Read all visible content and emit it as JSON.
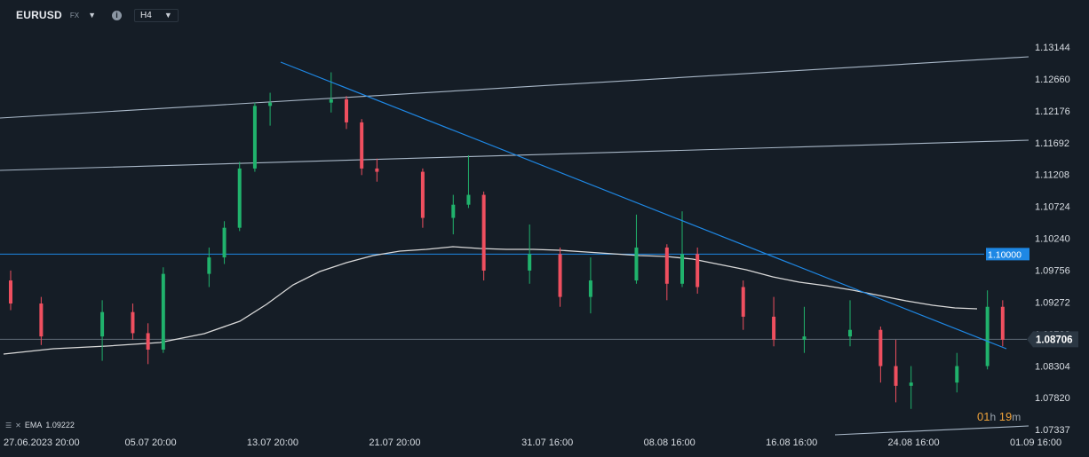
{
  "header": {
    "symbol": "EURUSD",
    "market": "FX",
    "timeframe": "H4",
    "info_icon": "info-icon",
    "dropdown_icon": "caret-down-icon"
  },
  "legend": {
    "indicator": "EMA",
    "value": "1.09222"
  },
  "timer": {
    "hours": "01",
    "hours_unit": "h",
    "minutes": "19",
    "minutes_unit": "m"
  },
  "colors": {
    "background": "#151d26",
    "bullish": "#20b26c",
    "bearish": "#ef4f5f",
    "ema": "#d9d9d9",
    "trendline": "#1e88e5",
    "channel": "#a9b8c8",
    "price_label": "#1e88e5",
    "timer": "#f0a33a"
  },
  "chart_data": {
    "type": "candlestick",
    "price_axis_ticks": [
      "1.13144",
      "1.12660",
      "1.12176",
      "1.11692",
      "1.11208",
      "1.10724",
      "1.10240",
      "1.09756",
      "1.09272",
      "1.08788",
      "1.08304",
      "1.07820",
      "1.07337"
    ],
    "time_axis_ticks": [
      "27.06.2023  20:00",
      "05.07  20:00",
      "13.07  20:00",
      "21.07  20:00",
      "31.07  16:00",
      "08.08  16:00",
      "16.08  16:00",
      "24.08  16:00",
      "01.09  16:00"
    ],
    "ylim": [
      1.0727,
      1.134
    ],
    "horizontal_line": {
      "price": 1.1,
      "label": "1.10000"
    },
    "last_price": {
      "price": 1.08706,
      "label": "1.08706"
    },
    "ema_value": 1.09222,
    "candles_approx": [
      {
        "t": "2023-06-27",
        "o": 1.096,
        "h": 1.0975,
        "l": 1.0915,
        "c": 1.0925
      },
      {
        "t": "2023-06-29",
        "o": 1.0925,
        "h": 1.0935,
        "l": 1.0862,
        "c": 1.0875
      },
      {
        "t": "2023-07-03",
        "o": 1.0875,
        "h": 1.093,
        "l": 1.0838,
        "c": 1.0912
      },
      {
        "t": "2023-07-05",
        "o": 1.0912,
        "h": 1.0925,
        "l": 1.087,
        "c": 1.088
      },
      {
        "t": "2023-07-06",
        "o": 1.088,
        "h": 1.0895,
        "l": 1.0833,
        "c": 1.0855
      },
      {
        "t": "2023-07-07",
        "o": 1.0855,
        "h": 1.098,
        "l": 1.085,
        "c": 1.097
      },
      {
        "t": "2023-07-10",
        "o": 1.097,
        "h": 1.101,
        "l": 1.095,
        "c": 1.0995
      },
      {
        "t": "2023-07-11",
        "o": 1.0995,
        "h": 1.105,
        "l": 1.0985,
        "c": 1.104
      },
      {
        "t": "2023-07-12",
        "o": 1.104,
        "h": 1.114,
        "l": 1.1035,
        "c": 1.113
      },
      {
        "t": "2023-07-13",
        "o": 1.113,
        "h": 1.123,
        "l": 1.1125,
        "c": 1.1225
      },
      {
        "t": "2023-07-14",
        "o": 1.1225,
        "h": 1.1245,
        "l": 1.1195,
        "c": 1.123
      },
      {
        "t": "2023-07-18",
        "o": 1.123,
        "h": 1.1276,
        "l": 1.1215,
        "c": 1.1235
      },
      {
        "t": "2023-07-19",
        "o": 1.1235,
        "h": 1.124,
        "l": 1.119,
        "c": 1.12
      },
      {
        "t": "2023-07-20",
        "o": 1.12,
        "h": 1.1205,
        "l": 1.112,
        "c": 1.113
      },
      {
        "t": "2023-07-21",
        "o": 1.113,
        "h": 1.1145,
        "l": 1.111,
        "c": 1.1125
      },
      {
        "t": "2023-07-24",
        "o": 1.1125,
        "h": 1.113,
        "l": 1.104,
        "c": 1.1055
      },
      {
        "t": "2023-07-26",
        "o": 1.1055,
        "h": 1.109,
        "l": 1.103,
        "c": 1.1075
      },
      {
        "t": "2023-07-27",
        "o": 1.1075,
        "h": 1.115,
        "l": 1.107,
        "c": 1.109
      },
      {
        "t": "2023-07-28",
        "o": 1.109,
        "h": 1.1095,
        "l": 1.096,
        "c": 1.0975
      },
      {
        "t": "2023-07-31",
        "o": 1.0975,
        "h": 1.1045,
        "l": 1.0955,
        "c": 1.1
      },
      {
        "t": "2023-08-02",
        "o": 1.1,
        "h": 1.101,
        "l": 1.092,
        "c": 1.0935
      },
      {
        "t": "2023-08-04",
        "o": 1.0935,
        "h": 1.0995,
        "l": 1.091,
        "c": 1.096
      },
      {
        "t": "2023-08-07",
        "o": 1.096,
        "h": 1.106,
        "l": 1.0955,
        "c": 1.101
      },
      {
        "t": "2023-08-09",
        "o": 1.101,
        "h": 1.1015,
        "l": 1.093,
        "c": 1.0955
      },
      {
        "t": "2023-08-10",
        "o": 1.0955,
        "h": 1.1065,
        "l": 1.095,
        "c": 1.1
      },
      {
        "t": "2023-08-11",
        "o": 1.1,
        "h": 1.101,
        "l": 1.094,
        "c": 1.095
      },
      {
        "t": "2023-08-14",
        "o": 1.095,
        "h": 1.096,
        "l": 1.0885,
        "c": 1.0905
      },
      {
        "t": "2023-08-16",
        "o": 1.0905,
        "h": 1.0935,
        "l": 1.086,
        "c": 1.087
      },
      {
        "t": "2023-08-18",
        "o": 1.087,
        "h": 1.092,
        "l": 1.085,
        "c": 1.0875
      },
      {
        "t": "2023-08-21",
        "o": 1.0875,
        "h": 1.093,
        "l": 1.086,
        "c": 1.0885
      },
      {
        "t": "2023-08-23",
        "o": 1.0885,
        "h": 1.089,
        "l": 1.0805,
        "c": 1.083
      },
      {
        "t": "2023-08-24",
        "o": 1.083,
        "h": 1.087,
        "l": 1.0775,
        "c": 1.08
      },
      {
        "t": "2023-08-25",
        "o": 1.08,
        "h": 1.083,
        "l": 1.0765,
        "c": 1.0805
      },
      {
        "t": "2023-08-28",
        "o": 1.0805,
        "h": 1.085,
        "l": 1.079,
        "c": 1.083
      },
      {
        "t": "2023-08-30",
        "o": 1.083,
        "h": 1.0945,
        "l": 1.0825,
        "c": 1.092
      },
      {
        "t": "2023-08-31",
        "o": 1.092,
        "h": 1.093,
        "l": 1.086,
        "c": 1.087
      }
    ]
  }
}
